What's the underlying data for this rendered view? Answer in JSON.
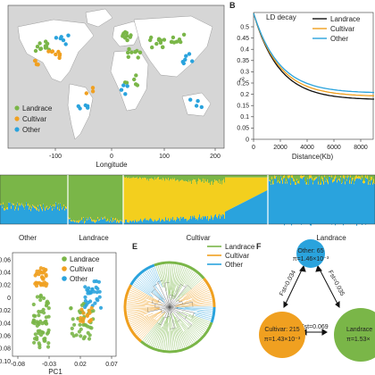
{
  "panel_b_letter": "B",
  "panel_e_letter": "E",
  "panel_f_letter": "F",
  "map": {
    "xlabel": "Longitude",
    "xticks": [
      "-100",
      "0",
      "100",
      "200"
    ],
    "legend": [
      "Landrace",
      "Cultivar",
      "Other"
    ]
  },
  "ld": {
    "title": "LD decay",
    "xlabel": "Distance(Kb)",
    "xticks": [
      "0",
      "2000",
      "4000",
      "6000",
      "8000"
    ],
    "yticks": [
      "0",
      "0.05",
      "0.1",
      "0.15",
      "0.2",
      "0.25",
      "0.3",
      "0.35",
      "0.4",
      "0.45",
      "0.5"
    ],
    "legend": [
      "Landrace",
      "Cultivar",
      "Other"
    ]
  },
  "structure": {
    "groups": [
      "Other",
      "Landrace",
      "Cultivar",
      "Landrace"
    ]
  },
  "pca": {
    "xlabel": "PC1",
    "xticks": [
      "-0.08",
      "-0.03",
      "0.02",
      "0.07"
    ],
    "yticks": [
      "0.06",
      "0.04",
      "0.02",
      "0",
      "-0.02",
      "-0.04",
      "-0.06",
      "-0.08",
      "-0.10"
    ],
    "legend": [
      "Landrace",
      "Cultivar",
      "Other"
    ]
  },
  "tree": {
    "legend": [
      "Landrace",
      "Cultivar",
      "Other"
    ]
  },
  "fst": {
    "other_label": "Other: 65",
    "other_pi": "π=1.46×10⁻³",
    "cultivar_label": "Cultivar: 215",
    "cultivar_pi": "π=1.43×10⁻³",
    "landrace_label": "Landrace",
    "landrace_pi": "π=1.53×",
    "fst_left": "Fst=0.034",
    "fst_right": "Fst=0.035",
    "fst_bottom": "Fst=0.069"
  },
  "colors": {
    "landrace": "#7ab648",
    "cultivar": "#f0a020",
    "other": "#2aa3dd",
    "structure_yellow": "#f3cf1e"
  }
}
